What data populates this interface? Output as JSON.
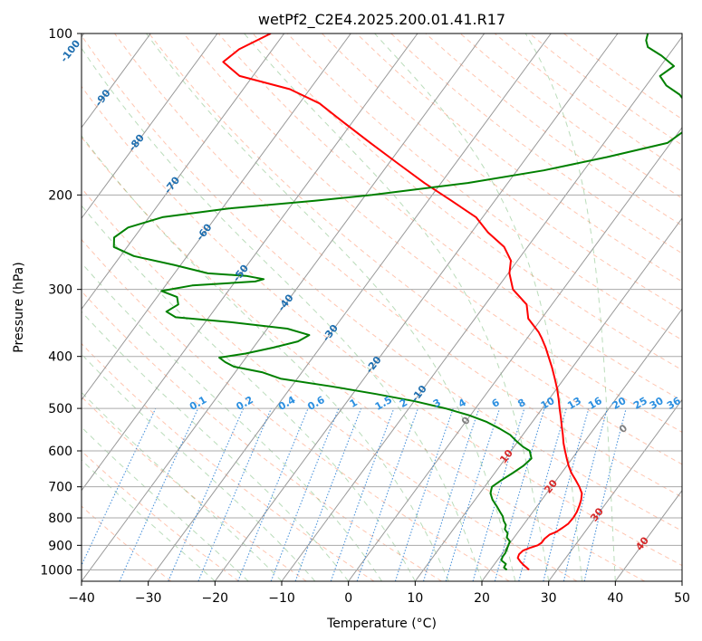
{
  "chart_data": {
    "type": "skew-t",
    "title": "wetPf2_C2E4.2025.200.01.41.R17",
    "xlabel": "Temperature (°C)",
    "ylabel": "Pressure (hPa)",
    "xlim": [
      -40,
      50
    ],
    "ylim": [
      1050,
      100
    ],
    "y_scale": "log",
    "grid": true,
    "x_ticks": [
      "−40",
      "−30",
      "−20",
      "−10",
      "0",
      "10",
      "20",
      "30",
      "40",
      "50"
    ],
    "y_ticks": [
      "100",
      "200",
      "300",
      "400",
      "500",
      "600",
      "700",
      "800",
      "900",
      "1000"
    ],
    "isotherm_labels": [
      {
        "text": "-100",
        "value": -100,
        "p": 108
      },
      {
        "text": "-90",
        "value": -90,
        "p": 132
      },
      {
        "text": "-80",
        "value": -80,
        "p": 160
      },
      {
        "text": "-70",
        "value": -70,
        "p": 192
      },
      {
        "text": "-60",
        "value": -60,
        "p": 235
      },
      {
        "text": "-50",
        "value": -50,
        "p": 280
      },
      {
        "text": "-40",
        "value": -40,
        "p": 318
      },
      {
        "text": "-30",
        "value": -30,
        "p": 362
      },
      {
        "text": "-20",
        "value": -20,
        "p": 415
      },
      {
        "text": "-10",
        "value": -10,
        "p": 470
      },
      {
        "text": "0",
        "value": 0,
        "p": 528
      },
      {
        "text": "10",
        "value": 10,
        "p": 615
      },
      {
        "text": "20",
        "value": 20,
        "p": 700
      },
      {
        "text": "30",
        "value": 30,
        "p": 790
      },
      {
        "text": "40",
        "value": 40,
        "p": 895
      }
    ],
    "mixing_ratio_labels": [
      "0.1",
      "0.2",
      "0.4",
      "0.6",
      "1",
      "1.5",
      "2",
      "3",
      "4",
      "6",
      "8",
      "10",
      "13",
      "16",
      "20",
      "25",
      "30",
      "36"
    ],
    "mixing_ratio_label_x": [
      -22.5,
      -15.5,
      -9.2,
      -4.8,
      0.8,
      5.3,
      8.3,
      13.3,
      17.1,
      22.1,
      26.0,
      29.9,
      33.9,
      37.0,
      40.6,
      43.8,
      46.2,
      48.8
    ],
    "series": [
      {
        "name": "",
        "color": "#ff0000",
        "p": [
          1000,
          990,
          980,
          965,
          950,
          935,
          920,
          910,
          900,
          890,
          875,
          860,
          850,
          835,
          820,
          800,
          780,
          760,
          740,
          720,
          700,
          680,
          660,
          640,
          620,
          600,
          580,
          560,
          540,
          520,
          500,
          480,
          460,
          440,
          420,
          400,
          385,
          370,
          360,
          340,
          320,
          300,
          280,
          265,
          250,
          235,
          220,
          205,
          190,
          175,
          160,
          145,
          135,
          127,
          120,
          113,
          107,
          100
        ],
        "t": [
          25.8,
          25.2,
          24.5,
          23.6,
          22.8,
          22.6,
          22.8,
          23.5,
          24.4,
          24.7,
          24.7,
          25.0,
          25.7,
          26.2,
          26.6,
          26.7,
          26.6,
          26.3,
          25.9,
          25.3,
          24.2,
          22.9,
          21.5,
          20.3,
          19.2,
          18.1,
          17.0,
          16.0,
          14.9,
          13.8,
          12.6,
          11.4,
          10.1,
          8.6,
          7.0,
          5.2,
          3.8,
          2.2,
          1.0,
          -2.0,
          -3.8,
          -7.5,
          -9.8,
          -11.0,
          -13.5,
          -17.5,
          -21.0,
          -26.5,
          -32.5,
          -38.5,
          -45.0,
          -52.0,
          -57.0,
          -63.0,
          -72.0,
          -76.0,
          -75.0,
          -72.0
        ]
      },
      {
        "name": "",
        "color": "#008000",
        "p": [
          1000,
          990,
          975,
          960,
          945,
          930,
          915,
          900,
          885,
          870,
          855,
          840,
          825,
          810,
          795,
          780,
          760,
          740,
          720,
          700,
          680,
          660,
          640,
          620,
          600,
          590,
          575,
          560,
          545,
          530,
          515,
          500,
          485,
          470,
          455,
          440,
          428,
          418,
          410,
          402,
          395,
          385,
          375,
          365,
          355,
          345,
          338,
          330,
          320,
          310,
          302,
          295,
          290,
          287,
          283,
          280,
          270,
          260,
          250,
          240,
          230,
          220,
          212,
          205,
          200,
          190,
          180,
          170,
          160,
          150,
          140,
          135,
          130,
          125,
          120,
          115,
          110,
          106,
          103,
          100
        ],
        "t": [
          22.5,
          21.8,
          21.7,
          20.6,
          20.4,
          20.4,
          20.2,
          20.0,
          19.8,
          18.9,
          18.6,
          17.7,
          17.4,
          16.6,
          16.0,
          15.1,
          13.9,
          12.6,
          11.6,
          11.1,
          11.8,
          12.7,
          13.5,
          13.9,
          12.8,
          11.4,
          9.7,
          8.1,
          5.8,
          3.2,
          -0.2,
          -4.5,
          -9.8,
          -16.5,
          -24.0,
          -32.5,
          -36.0,
          -40.8,
          -42.6,
          -44.0,
          -40.5,
          -37.0,
          -34.0,
          -33.0,
          -37.0,
          -46.5,
          -55.0,
          -57.0,
          -56.0,
          -57.0,
          -60.0,
          -56.0,
          -47.0,
          -46.0,
          -49.0,
          -55.0,
          -61.0,
          -68.0,
          -72.0,
          -73.0,
          -72.0,
          -68.0,
          -59.0,
          -47.0,
          -39.0,
          -26.0,
          -16.0,
          -8.0,
          -0.5,
          1.0,
          -0.5,
          -2.0,
          -4.0,
          -7.0,
          -9.0,
          -8.0,
          -11.0,
          -14.0,
          -15.0,
          -15.5
        ]
      },
      {
        "name": "",
        "color": "#808080",
        "p": [
          545
        ],
        "t": [
          24.3
        ],
        "label": "0"
      }
    ]
  }
}
